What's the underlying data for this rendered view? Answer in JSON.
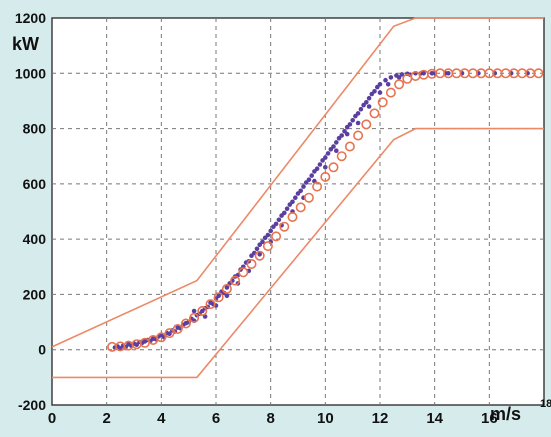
{
  "chart_data": {
    "type": "scatter",
    "title": "",
    "xlabel": "m/s",
    "ylabel": "kW",
    "xlim": [
      0,
      18
    ],
    "ylim": [
      -200,
      1200
    ],
    "x_ticks": [
      0,
      2,
      4,
      6,
      8,
      10,
      12,
      14,
      16,
      18
    ],
    "y_ticks": [
      -200,
      0,
      200,
      400,
      600,
      800,
      1000,
      1200
    ],
    "x_tick_labels": [
      "0",
      "2",
      "4",
      "6",
      "8",
      "10",
      "12",
      "14",
      "16",
      "18"
    ],
    "y_tick_labels": [
      "-200",
      "0",
      "200",
      "400",
      "600",
      "800",
      "1000",
      "1200"
    ],
    "grid": true,
    "legend": "none",
    "colors": {
      "background": "#d6ecec",
      "plot_area": "#ffffff",
      "grid": "#777777",
      "scatter": "#5a3fa0",
      "curve_markers": "#e8734f",
      "bounds": "#ec8a68"
    },
    "series": [
      {
        "kind": "scatter",
        "points": [
          [
            2.3,
            8
          ],
          [
            2.4,
            12
          ],
          [
            2.5,
            5
          ],
          [
            2.6,
            15
          ],
          [
            2.7,
            10
          ],
          [
            2.8,
            20
          ],
          [
            2.9,
            14
          ],
          [
            3.0,
            22
          ],
          [
            3.1,
            18
          ],
          [
            3.2,
            28
          ],
          [
            3.3,
            25
          ],
          [
            3.4,
            30
          ],
          [
            3.5,
            35
          ],
          [
            3.6,
            32
          ],
          [
            3.7,
            40
          ],
          [
            3.8,
            38
          ],
          [
            3.9,
            48
          ],
          [
            4.0,
            52
          ],
          [
            4.1,
            45
          ],
          [
            4.2,
            60
          ],
          [
            4.3,
            58
          ],
          [
            4.4,
            70
          ],
          [
            4.5,
            66
          ],
          [
            4.6,
            80
          ],
          [
            4.7,
            78
          ],
          [
            4.8,
            90
          ],
          [
            4.9,
            96
          ],
          [
            5.0,
            100
          ],
          [
            5.1,
            112
          ],
          [
            5.2,
            105
          ],
          [
            5.3,
            125
          ],
          [
            5.4,
            130
          ],
          [
            5.5,
            140
          ],
          [
            5.6,
            150
          ],
          [
            5.7,
            155
          ],
          [
            5.8,
            170
          ],
          [
            5.9,
            165
          ],
          [
            6.0,
            185
          ],
          [
            6.1,
            195
          ],
          [
            6.2,
            210
          ],
          [
            6.3,
            205
          ],
          [
            6.4,
            225
          ],
          [
            6.5,
            240
          ],
          [
            6.6,
            250
          ],
          [
            6.7,
            265
          ],
          [
            6.8,
            270
          ],
          [
            6.9,
            290
          ],
          [
            7.0,
            300
          ],
          [
            7.1,
            315
          ],
          [
            7.2,
            320
          ],
          [
            7.3,
            340
          ],
          [
            7.4,
            350
          ],
          [
            7.5,
            365
          ],
          [
            7.6,
            380
          ],
          [
            7.7,
            390
          ],
          [
            7.8,
            405
          ],
          [
            7.9,
            415
          ],
          [
            8.0,
            430
          ],
          [
            8.1,
            445
          ],
          [
            8.2,
            455
          ],
          [
            8.3,
            470
          ],
          [
            8.4,
            485
          ],
          [
            8.5,
            495
          ],
          [
            8.6,
            510
          ],
          [
            8.7,
            525
          ],
          [
            8.8,
            535
          ],
          [
            8.9,
            550
          ],
          [
            9.0,
            565
          ],
          [
            9.1,
            575
          ],
          [
            9.2,
            590
          ],
          [
            9.3,
            605
          ],
          [
            9.4,
            615
          ],
          [
            9.5,
            630
          ],
          [
            9.6,
            645
          ],
          [
            9.7,
            655
          ],
          [
            9.8,
            670
          ],
          [
            9.9,
            685
          ],
          [
            10.0,
            695
          ],
          [
            10.1,
            710
          ],
          [
            10.2,
            725
          ],
          [
            10.3,
            735
          ],
          [
            10.4,
            750
          ],
          [
            10.5,
            765
          ],
          [
            10.6,
            775
          ],
          [
            10.7,
            790
          ],
          [
            10.8,
            805
          ],
          [
            10.9,
            815
          ],
          [
            11.0,
            830
          ],
          [
            11.1,
            845
          ],
          [
            11.2,
            855
          ],
          [
            11.3,
            870
          ],
          [
            11.4,
            885
          ],
          [
            11.5,
            895
          ],
          [
            11.6,
            910
          ],
          [
            11.7,
            925
          ],
          [
            11.8,
            935
          ],
          [
            11.9,
            950
          ],
          [
            12.0,
            960
          ],
          [
            12.2,
            975
          ],
          [
            12.4,
            985
          ],
          [
            12.6,
            992
          ],
          [
            12.8,
            996
          ],
          [
            13.0,
            998
          ],
          [
            13.3,
            1000
          ],
          [
            13.6,
            1000
          ],
          [
            14.0,
            1000
          ],
          [
            14.4,
            1000
          ],
          [
            15.0,
            1000
          ],
          [
            15.6,
            1000
          ],
          [
            16.2,
            1000
          ],
          [
            16.8,
            1000
          ],
          [
            17.4,
            1000
          ],
          [
            5.2,
            140
          ],
          [
            5.6,
            120
          ],
          [
            6.0,
            160
          ],
          [
            6.4,
            195
          ],
          [
            6.8,
            240
          ],
          [
            7.2,
            285
          ],
          [
            7.6,
            345
          ],
          [
            8.0,
            390
          ],
          [
            8.4,
            450
          ],
          [
            8.8,
            500
          ],
          [
            9.2,
            550
          ],
          [
            9.6,
            610
          ],
          [
            10.0,
            660
          ],
          [
            10.4,
            720
          ],
          [
            10.8,
            780
          ],
          [
            11.2,
            820
          ],
          [
            11.6,
            880
          ],
          [
            12.0,
            930
          ],
          [
            12.3,
            960
          ],
          [
            12.7,
            985
          ],
          [
            13.1,
            995
          ],
          [
            13.5,
            1000
          ],
          [
            13.9,
            1000
          ],
          [
            14.5,
            1000
          ]
        ]
      },
      {
        "kind": "binned-curve",
        "points": [
          [
            2.2,
            10
          ],
          [
            2.5,
            12
          ],
          [
            2.8,
            15
          ],
          [
            3.1,
            20
          ],
          [
            3.4,
            25
          ],
          [
            3.7,
            35
          ],
          [
            4.0,
            45
          ],
          [
            4.3,
            60
          ],
          [
            4.6,
            75
          ],
          [
            4.9,
            95
          ],
          [
            5.2,
            115
          ],
          [
            5.5,
            140
          ],
          [
            5.8,
            165
          ],
          [
            6.1,
            190
          ],
          [
            6.4,
            220
          ],
          [
            6.7,
            250
          ],
          [
            7.0,
            280
          ],
          [
            7.3,
            310
          ],
          [
            7.6,
            340
          ],
          [
            7.9,
            375
          ],
          [
            8.2,
            410
          ],
          [
            8.5,
            445
          ],
          [
            8.8,
            480
          ],
          [
            9.1,
            515
          ],
          [
            9.4,
            550
          ],
          [
            9.7,
            590
          ],
          [
            10.0,
            625
          ],
          [
            10.3,
            660
          ],
          [
            10.6,
            700
          ],
          [
            10.9,
            735
          ],
          [
            11.2,
            775
          ],
          [
            11.5,
            815
          ],
          [
            11.8,
            855
          ],
          [
            12.1,
            895
          ],
          [
            12.4,
            930
          ],
          [
            12.7,
            960
          ],
          [
            13.0,
            980
          ],
          [
            13.3,
            990
          ],
          [
            13.6,
            995
          ],
          [
            13.9,
            998
          ],
          [
            14.2,
            1000
          ],
          [
            14.5,
            1000
          ],
          [
            14.8,
            1000
          ],
          [
            15.1,
            1000
          ],
          [
            15.4,
            1000
          ],
          [
            15.7,
            1000
          ],
          [
            16.0,
            1000
          ],
          [
            16.3,
            1000
          ],
          [
            16.6,
            1000
          ],
          [
            16.9,
            1000
          ],
          [
            17.2,
            1000
          ],
          [
            17.5,
            1000
          ],
          [
            17.8,
            1000
          ]
        ]
      },
      {
        "kind": "upper-bound",
        "points": [
          [
            0,
            10
          ],
          [
            5.3,
            250
          ],
          [
            12.5,
            1170
          ],
          [
            13.3,
            1200
          ],
          [
            18,
            1200
          ]
        ]
      },
      {
        "kind": "lower-bound",
        "points": [
          [
            0,
            -100
          ],
          [
            5.3,
            -100
          ],
          [
            12.5,
            760
          ],
          [
            13.3,
            800
          ],
          [
            18,
            800
          ]
        ]
      }
    ]
  }
}
